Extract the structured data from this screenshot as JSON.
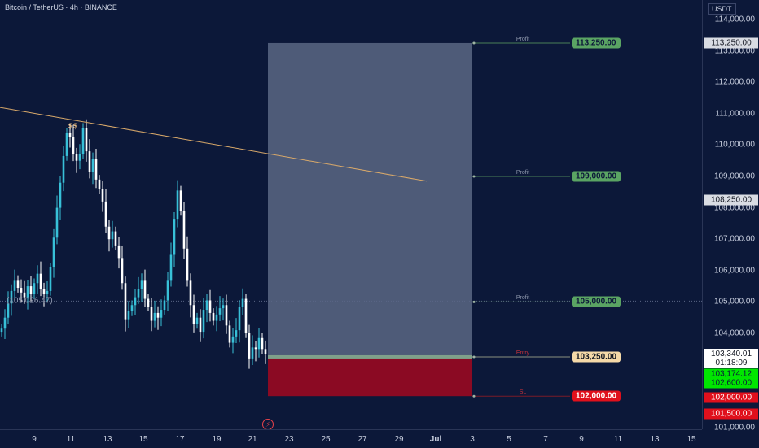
{
  "header": {
    "symbol_title": "Bitcoin / TetherUS · 4h · BINANCE"
  },
  "price_axis": {
    "currency": "USDT",
    "ticks": [
      "114,000.00",
      "113,000.00",
      "112,000.00",
      "111,000.00",
      "110,000.00",
      "109,000.00",
      "108,000.00",
      "107,000.00",
      "106,000.00",
      "105,000.00",
      "104,000.00",
      "103,000.00",
      "102,000.00",
      "101,000.00"
    ],
    "tick_values": [
      114000,
      113000,
      112000,
      111000,
      110000,
      109000,
      108000,
      107000,
      106000,
      105000,
      104000,
      103000,
      102000,
      101000
    ],
    "badges": [
      {
        "text": "113,250.00",
        "value": 113250,
        "bg": "#d9dce3",
        "fg": "#131722"
      },
      {
        "text": "108,250.00",
        "value": 108250,
        "bg": "#d9dce3",
        "fg": "#131722"
      },
      {
        "text": "103,340.01",
        "text2": "01:18:09",
        "value": 103340,
        "bg": "#ffffff",
        "fg": "#131722"
      },
      {
        "text": "103,174.12",
        "value": 103174,
        "bg": "#00e600",
        "fg": "#0c1839"
      },
      {
        "text": "102,600.00",
        "value": 102600,
        "bg": "#00e600",
        "fg": "#0c1839"
      },
      {
        "text": "102,000.00",
        "value": 102000,
        "bg": "#e0101c",
        "fg": "#ffffff"
      },
      {
        "text": "101,500.00",
        "value": 101500,
        "bg": "#e0101c",
        "fg": "#ffffff"
      }
    ]
  },
  "time_axis": {
    "labels": [
      "9",
      "11",
      "13",
      "15",
      "17",
      "19",
      "21",
      "23",
      "25",
      "27",
      "29",
      "Jul",
      "3",
      "5",
      "7",
      "9",
      "11",
      "13",
      "15"
    ]
  },
  "prev_close_label": "(105,026.47)",
  "liquidity_mark": "$$",
  "alert_icon_glyph": "⚡",
  "levels": [
    {
      "tag": "Profit",
      "price_text": "113,250.00",
      "value": 113250,
      "bg": "#5aa463",
      "fg": "#0c1839",
      "tag_color": "#8f98ad"
    },
    {
      "tag": "Profit",
      "price_text": "109,000.00",
      "value": 109000,
      "bg": "#5aa463",
      "fg": "#0c1839",
      "tag_color": "#8f98ad"
    },
    {
      "tag": "Profit",
      "price_text": "105,000.00",
      "value": 105000,
      "bg": "#5aa463",
      "fg": "#0c1839",
      "tag_color": "#8f98ad"
    },
    {
      "tag": "Entry",
      "price_text": "103,250.00",
      "value": 103250,
      "bg": "#f5d9a8",
      "fg": "#131722",
      "tag_color": "#c4323a"
    },
    {
      "tag": "SL",
      "price_text": "102,000.00",
      "value": 102000,
      "bg": "#e0101c",
      "fg": "#ffffff",
      "tag_color": "#c4323a"
    }
  ],
  "colors": {
    "background": "#0c1839",
    "candle_up": "#38c0d8",
    "candle_down": "#ffffff",
    "trendline": "#d9a96a",
    "profit_zone": "#4e5b78",
    "loss_zone": "#8b0a23"
  },
  "chart_data": {
    "type": "candlestick",
    "title": "Bitcoin / TetherUS · 4h · BINANCE",
    "ylim": [
      100800,
      114400
    ],
    "x_labels": [
      "9",
      "11",
      "13",
      "15",
      "17",
      "19",
      "21",
      "23",
      "25",
      "27",
      "29",
      "Jul",
      "3",
      "5",
      "7",
      "9",
      "11",
      "13",
      "15"
    ],
    "trendline": {
      "from_price": 111200,
      "to_price": 108850
    },
    "position": {
      "entry": 103250,
      "take_profits": [
        105000,
        109000,
        113250
      ],
      "stop_loss": 102000
    },
    "last_price": 103340.01,
    "prev_close": 105026.47
  }
}
